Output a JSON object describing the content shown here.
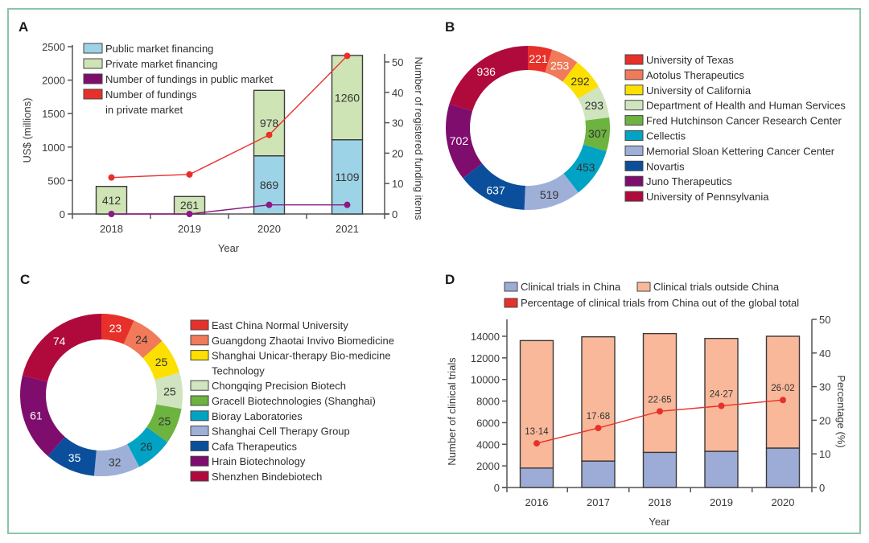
{
  "chart_data": [
    {
      "panel": "A",
      "type": "bar",
      "stacked": true,
      "categories": [
        "2018",
        "2019",
        "2020",
        "2021"
      ],
      "xlabel": "Year",
      "ylabel": "US$ (millions)",
      "ylabel_right": "Number of registered funding items",
      "ylim": [
        0,
        2500
      ],
      "yticks": [
        0,
        500,
        1000,
        1500,
        2000,
        2500
      ],
      "ylim_right": [
        0,
        55
      ],
      "yticks_right": [
        0,
        10,
        20,
        30,
        40,
        50
      ],
      "series": [
        {
          "name": "Public market financing",
          "kind": "bar",
          "axis": "left",
          "color": "#9dd3e6",
          "values": [
            0,
            0,
            869,
            1109
          ],
          "labels": [
            "",
            "",
            "869",
            "1109"
          ]
        },
        {
          "name": "Private market financing",
          "kind": "bar",
          "axis": "left",
          "color": "#cfe4b5",
          "values": [
            412,
            261,
            978,
            1260
          ],
          "labels": [
            "412",
            "261",
            "978",
            "1260"
          ]
        },
        {
          "name": "Number of fundings in public market",
          "kind": "line",
          "axis": "right",
          "color": "#8a1a83",
          "values": [
            0,
            0,
            3,
            3
          ]
        },
        {
          "name": "Number of fundings in private market",
          "kind": "line",
          "axis": "right",
          "color": "#e8302a",
          "values": [
            12,
            13,
            26,
            52
          ]
        }
      ],
      "legend": [
        {
          "label_lines": [
            "Public market financing"
          ],
          "color": "#9dd3e6"
        },
        {
          "label_lines": [
            "Private market financing"
          ],
          "color": "#cfe4b5"
        },
        {
          "label_lines": [
            "Number of fundings in public market"
          ],
          "color": "#7e0d6e"
        },
        {
          "label_lines": [
            "Number of fundings",
            "in private market"
          ],
          "color": "#e8302a"
        }
      ],
      "legend_position": "top-left"
    },
    {
      "panel": "B",
      "type": "pie",
      "donut": true,
      "categories": [
        "University of Texas",
        "Aotolus Therapeutics",
        "University of California",
        "Department of Health and Human Services",
        "Fred Hutchinson Cancer Research Center",
        "Cellectis",
        "Memorial Sloan Kettering Cancer Center",
        "Novartis",
        "Juno Therapeutics",
        "University of Pennsylvania"
      ],
      "values": [
        221,
        253,
        292,
        293,
        307,
        453,
        519,
        637,
        702,
        936
      ],
      "colors": [
        "#e8302a",
        "#f07a5a",
        "#fde000",
        "#cfe4bf",
        "#6db33f",
        "#00a3c4",
        "#9fb0d8",
        "#0b4f9c",
        "#7e0d6e",
        "#b00a3c"
      ],
      "label_colors": [
        "#ffffff",
        "#ffffff",
        "#333333",
        "#333333",
        "#333333",
        "#333333",
        "#333333",
        "#ffffff",
        "#ffffff",
        "#ffffff"
      ],
      "legend_position": "right"
    },
    {
      "panel": "C",
      "type": "pie",
      "donut": true,
      "categories": [
        "East China Normal University",
        "Guangdong Zhaotai Invivo Biomedicine",
        "Shanghai Unicar-therapy Bio-medicine Technology",
        "Chongqing Precision Biotech",
        "Gracell Biotechnologies (Shanghai)",
        "Bioray Laboratories",
        "Shanghai Cell Therapy Group",
        "Cafa Therapeutics",
        "Hrain Biotechnology",
        "Shenzhen Bindebiotech"
      ],
      "legend_lines": [
        [
          "East China Normal University"
        ],
        [
          "Guangdong Zhaotai Invivo Biomedicine"
        ],
        [
          "Shanghai Unicar-therapy Bio-medicine",
          "Technology"
        ],
        [
          "Chongqing Precision Biotech"
        ],
        [
          "Gracell Biotechnologies (Shanghai)"
        ],
        [
          "Bioray Laboratories"
        ],
        [
          "Shanghai Cell Therapy Group"
        ],
        [
          "Cafa Therapeutics"
        ],
        [
          "Hrain Biotechnology"
        ],
        [
          "Shenzhen Bindebiotech"
        ]
      ],
      "values": [
        23,
        24,
        25,
        25,
        25,
        26,
        32,
        35,
        61,
        74
      ],
      "colors": [
        "#e8302a",
        "#f07a5a",
        "#fde000",
        "#cfe4bf",
        "#6db33f",
        "#00a3c4",
        "#9fb0d8",
        "#0b4f9c",
        "#7e0d6e",
        "#b00a3c"
      ],
      "label_colors": [
        "#ffffff",
        "#333333",
        "#333333",
        "#333333",
        "#333333",
        "#333333",
        "#333333",
        "#ffffff",
        "#ffffff",
        "#ffffff"
      ],
      "legend_position": "right"
    },
    {
      "panel": "D",
      "type": "bar",
      "stacked": true,
      "categories": [
        "2016",
        "2017",
        "2018",
        "2019",
        "2020"
      ],
      "xlabel": "Year",
      "ylabel": "Number of clinical trials",
      "ylabel_right": "Percentage (%)",
      "ylim": [
        0,
        15500
      ],
      "yticks": [
        0,
        2000,
        4000,
        6000,
        8000,
        10000,
        12000,
        14000
      ],
      "ylim_right": [
        0,
        50
      ],
      "yticks_right": [
        0,
        10,
        20,
        30,
        40,
        50
      ],
      "series": [
        {
          "name": "Clinical trials in China",
          "kind": "bar",
          "axis": "left",
          "color": "#9dacd6",
          "values": [
            1800,
            2450,
            3250,
            3350,
            3650
          ]
        },
        {
          "name": "Clinical trials outside China",
          "kind": "bar",
          "axis": "left",
          "color": "#f9b89a",
          "values": [
            11800,
            11500,
            11000,
            10450,
            10350
          ]
        },
        {
          "name": "Percentage of clinical trials from China out of the global total",
          "kind": "line",
          "axis": "right",
          "color": "#e8302a",
          "values": [
            13.14,
            17.68,
            22.65,
            24.27,
            26.02
          ],
          "labels": [
            "13·14",
            "17·68",
            "22·65",
            "24·27",
            "26·02"
          ]
        }
      ],
      "legend": [
        {
          "label": "Clinical trials in China",
          "color": "#9dacd6"
        },
        {
          "label": "Clinical trials outside China",
          "color": "#f9b89a"
        },
        {
          "label": "Percentage of clinical trials from China out of the global total",
          "color": "#e8302a"
        }
      ],
      "legend_position": "top"
    }
  ],
  "panels": {
    "A": "A",
    "B": "B",
    "C": "C",
    "D": "D"
  }
}
